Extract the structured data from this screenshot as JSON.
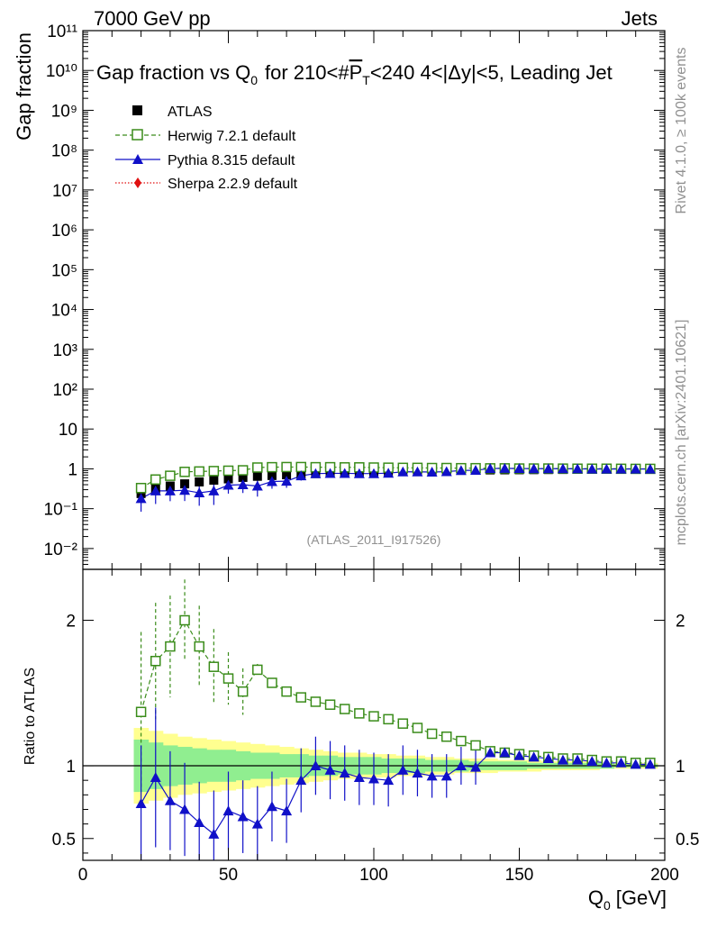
{
  "header": {
    "left": "7000 GeV pp",
    "right": "Jets",
    "side_top": "Rivet 4.1.0, ≥ 100k events",
    "side_bottom": "mcplots.cern.ch [arXiv:2401.10621]"
  },
  "colors": {
    "data": "#000000",
    "herwig": "#3a8c1a",
    "pythia": "#1010c8",
    "sherpa": "#e01010",
    "band_inner": "#90ee90",
    "band_outer": "#ffff90"
  },
  "chart_data": [
    {
      "type": "scatter",
      "title": "Gap fraction vs Q",
      "title_sub": "0",
      "title_rest": "for 210<#",
      "title_pt": "P",
      "title_pt_sub": "T",
      "title_tail": "<240  4<|Δy|<5, Leading Jet",
      "ylabel": "Gap fraction",
      "yscale": "log",
      "ylim": [
        0.003,
        100000000000
      ],
      "xlim": [
        0,
        200
      ],
      "y_tick_labels": [
        "10⁻²",
        "10⁻¹",
        "1",
        "10",
        "10²",
        "10³",
        "10⁴",
        "10⁵",
        "10⁶",
        "10⁷",
        "10⁸",
        "10⁹",
        "10¹⁰",
        "10¹¹"
      ],
      "watermark": "(ATLAS_2011_I917526)",
      "legend": [
        "ATLAS",
        "Herwig 7.2.1 default",
        "Pythia 8.315 default",
        "Sherpa 2.2.9 default"
      ],
      "legend_position": "top-left",
      "x": [
        20,
        25,
        30,
        35,
        40,
        45,
        50,
        55,
        60,
        65,
        70,
        75,
        80,
        85,
        90,
        95,
        100,
        105,
        110,
        115,
        120,
        125,
        130,
        135,
        140,
        145,
        150,
        155,
        160,
        165,
        170,
        175,
        180,
        185,
        190,
        195
      ],
      "series": [
        {
          "name": "ATLAS",
          "values": [
            0.24,
            0.31,
            0.37,
            0.42,
            0.47,
            0.52,
            0.56,
            0.61,
            0.65,
            0.68,
            0.71,
            0.74,
            0.76,
            0.79,
            0.81,
            0.83,
            0.85,
            0.86,
            0.87,
            0.88,
            0.9,
            0.91,
            0.92,
            0.93,
            0.94,
            0.945,
            0.95,
            0.955,
            0.96,
            0.965,
            0.97,
            0.975,
            0.98,
            0.985,
            0.99,
            0.99
          ]
        },
        {
          "name": "Herwig 7.2.1 default",
          "values": [
            0.33,
            0.54,
            0.67,
            0.84,
            0.86,
            0.88,
            0.9,
            0.92,
            1.08,
            1.1,
            1.11,
            1.11,
            1.1,
            1.1,
            1.09,
            1.09,
            1.08,
            1.07,
            1.06,
            1.06,
            1.05,
            1.05,
            1.04,
            1.04,
            1.03,
            1.03,
            1.02,
            1.02,
            1.02,
            1.015,
            1.01,
            1.01,
            1.01,
            1.005,
            1.0,
            1.0
          ]
        },
        {
          "name": "Pythia 8.315 default",
          "values": [
            0.18,
            0.28,
            0.28,
            0.29,
            0.25,
            0.28,
            0.39,
            0.4,
            0.37,
            0.48,
            0.49,
            0.67,
            0.76,
            0.77,
            0.77,
            0.76,
            0.76,
            0.78,
            0.84,
            0.84,
            0.83,
            0.85,
            0.91,
            0.92,
            1.02,
            1.03,
            1.02,
            1.01,
            1.01,
            1.01,
            1.0,
            0.99,
            0.99,
            0.99,
            0.99,
            0.99
          ]
        }
      ]
    },
    {
      "type": "scatter",
      "ylabel": "Ratio to ATLAS",
      "xlabel": "Q",
      "xlabel_sub": "0",
      "xlabel_unit": "[GeV]",
      "ylim": [
        0.35,
        2.35
      ],
      "xlim": [
        0,
        200
      ],
      "y_tick_labels": [
        "0.5",
        "1",
        "2"
      ],
      "x_tick_labels": [
        "0",
        "50",
        "100",
        "150",
        "200"
      ],
      "x": [
        20,
        25,
        30,
        35,
        40,
        45,
        50,
        55,
        60,
        65,
        70,
        75,
        80,
        85,
        90,
        95,
        100,
        105,
        110,
        115,
        120,
        125,
        130,
        135,
        140,
        145,
        150,
        155,
        160,
        165,
        170,
        175,
        180,
        185,
        190,
        195
      ],
      "series": [
        {
          "name": "Herwig 7.2.1 default",
          "values": [
            1.37,
            1.72,
            1.82,
            2.0,
            1.82,
            1.68,
            1.6,
            1.51,
            1.66,
            1.57,
            1.51,
            1.47,
            1.44,
            1.42,
            1.39,
            1.36,
            1.34,
            1.32,
            1.29,
            1.26,
            1.22,
            1.2,
            1.17,
            1.14,
            1.1,
            1.09,
            1.08,
            1.07,
            1.06,
            1.05,
            1.05,
            1.04,
            1.03,
            1.03,
            1.02,
            1.02
          ],
          "err": [
            0.55,
            0.4,
            0.35,
            0.28,
            0.28,
            0.26,
            0.18,
            0.16,
            0.04,
            0.03,
            0.03,
            0.03,
            0.03,
            0.03,
            0.03,
            0.03,
            0.02,
            0.02,
            0.02,
            0.02,
            0.02,
            0.02,
            0.02,
            0.02,
            0.02,
            0.01,
            0.01,
            0.01,
            0.01,
            0.01,
            0.01,
            0.01,
            0.01,
            0.01,
            0.01,
            0.01
          ]
        },
        {
          "name": "Pythia 8.315 default",
          "values": [
            0.74,
            0.92,
            0.76,
            0.7,
            0.61,
            0.53,
            0.69,
            0.65,
            0.6,
            0.72,
            0.69,
            0.9,
            1.0,
            0.97,
            0.95,
            0.92,
            0.91,
            0.9,
            0.97,
            0.95,
            0.93,
            0.93,
            1.0,
            0.99,
            1.09,
            1.09,
            1.07,
            1.06,
            1.05,
            1.04,
            1.04,
            1.03,
            1.02,
            1.02,
            1.01,
            1.01
          ],
          "err": [
            0.4,
            0.48,
            0.34,
            0.32,
            0.28,
            0.3,
            0.27,
            0.25,
            0.26,
            0.24,
            0.22,
            0.22,
            0.2,
            0.2,
            0.19,
            0.19,
            0.18,
            0.18,
            0.17,
            0.16,
            0.15,
            0.15,
            0.13,
            0.12,
            0.03,
            0.02,
            0.02,
            0.02,
            0.02,
            0.02,
            0.02,
            0.02,
            0.02,
            0.02,
            0.02,
            0.02
          ]
        }
      ],
      "band_inner": [
        0.18,
        0.16,
        0.14,
        0.13,
        0.12,
        0.11,
        0.11,
        0.1,
        0.09,
        0.09,
        0.08,
        0.08,
        0.07,
        0.07,
        0.06,
        0.06,
        0.06,
        0.05,
        0.05,
        0.05,
        0.04,
        0.04,
        0.04,
        0.03,
        0.03,
        0.03,
        0.03,
        0.02,
        0.02,
        0.02,
        0.02,
        0.02,
        0.02,
        0.01,
        0.01,
        0.01
      ],
      "band_outer": [
        0.26,
        0.24,
        0.22,
        0.2,
        0.19,
        0.18,
        0.17,
        0.16,
        0.15,
        0.14,
        0.13,
        0.12,
        0.11,
        0.1,
        0.09,
        0.09,
        0.08,
        0.08,
        0.07,
        0.07,
        0.06,
        0.06,
        0.05,
        0.05,
        0.05,
        0.04,
        0.04,
        0.04,
        0.03,
        0.03,
        0.03,
        0.03,
        0.02,
        0.02,
        0.02,
        0.02
      ]
    }
  ]
}
